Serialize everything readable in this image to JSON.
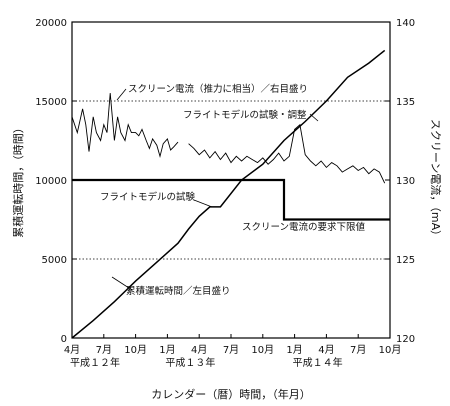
{
  "chart_data": {
    "type": "line",
    "xlabel": "カレンダー（暦）時間，（年月）",
    "ylabel_left": "累積運転時間，（時間）",
    "ylabel_right": "スクリーン電流，（mA）",
    "x_ticks": [
      "4月",
      "7月",
      "10月",
      "1月",
      "4月",
      "7月",
      "10月",
      "1月",
      "4月",
      "7月",
      "10月"
    ],
    "x_years": [
      "平成１２年",
      "平成１３年",
      "平成１４年"
    ],
    "xlim": [
      0,
      30
    ],
    "y_left": {
      "ticks": [
        0,
        5000,
        10000,
        15000,
        20000
      ],
      "lim": [
        0,
        20000
      ]
    },
    "y_right": {
      "ticks": [
        120,
        125,
        130,
        135,
        140
      ],
      "lim": [
        120,
        140
      ]
    },
    "grid_dashed": [
      5000,
      15000
    ],
    "annotations": {
      "screen_current": "スクリーン電流（推力に相当）／右目盛り",
      "flight_model_test_adjust": "フライトモデルの試験・調整",
      "flight_model_test": "フライトモデルの試験",
      "screen_current_lower_limit": "スクリーン電流の要求下限値",
      "cumulative_hours": "累積運転時間／左目盛り"
    },
    "series": [
      {
        "name": "累積運転時間／左目盛り",
        "axis": "left",
        "x": [
          0,
          2,
          4,
          6,
          8,
          10,
          11,
          12,
          13,
          14,
          16,
          18,
          20,
          22,
          24,
          26,
          28,
          29.5
        ],
        "values": [
          0,
          1100,
          2300,
          3600,
          4800,
          6000,
          6900,
          7700,
          8300,
          8300,
          10000,
          11000,
          12500,
          13700,
          15000,
          16500,
          17400,
          18200
        ]
      },
      {
        "name": "スクリーン電流（推力に相当）／右目盛り",
        "axis": "right",
        "segments": [
          {
            "x": [
              0,
              0.5,
              1,
              1.3,
              1.6,
              2,
              2.3,
              2.7,
              3,
              3.3,
              3.6,
              4,
              4.3,
              4.6,
              5,
              5.3,
              5.6,
              6,
              6.3,
              6.6,
              7,
              7.3,
              7.6,
              8,
              8.3,
              8.6,
              9,
              9.3,
              9.6,
              10
            ],
            "values": [
              134,
              133,
              134.5,
              133.5,
              131.8,
              134,
              133,
              132.5,
              133.5,
              133,
              135.5,
              132.5,
              134,
              133,
              132.5,
              133.5,
              133,
              133,
              132.8,
              133.2,
              132.5,
              132,
              132.6,
              132.2,
              131.5,
              132.3,
              132.6,
              131.9,
              132.1,
              132.4
            ]
          },
          {
            "x": [
              11,
              11.5,
              12,
              12.5,
              13,
              13.5,
              14,
              14.5,
              15,
              15.5,
              16,
              16.5,
              17,
              17.5,
              18,
              18.5,
              19,
              19.5,
              20,
              20.5,
              21,
              21.5,
              22,
              22.5,
              23,
              23.5,
              24,
              24.5,
              25,
              25.5,
              26,
              26.5,
              27,
              27.5,
              28,
              28.5,
              29,
              29.5
            ],
            "values": [
              132.3,
              132,
              131.6,
              131.9,
              131.4,
              131.8,
              131.3,
              131.7,
              131.1,
              131.5,
              131.2,
              131.5,
              131.3,
              131.1,
              131.4,
              131,
              131.3,
              131.7,
              131.2,
              131.5,
              133.2,
              133.5,
              131.6,
              131.2,
              130.9,
              131.2,
              130.8,
              131.1,
              130.9,
              130.5,
              130.7,
              130.9,
              130.6,
              130.8,
              130.4,
              130.7,
              130.5,
              129.8
            ]
          }
        ]
      },
      {
        "name": "スクリーン電流の要求下限値",
        "axis": "right",
        "step": true,
        "x": [
          0,
          20,
          20,
          30
        ],
        "values": [
          130,
          130,
          127.5,
          127.5
        ]
      }
    ]
  }
}
